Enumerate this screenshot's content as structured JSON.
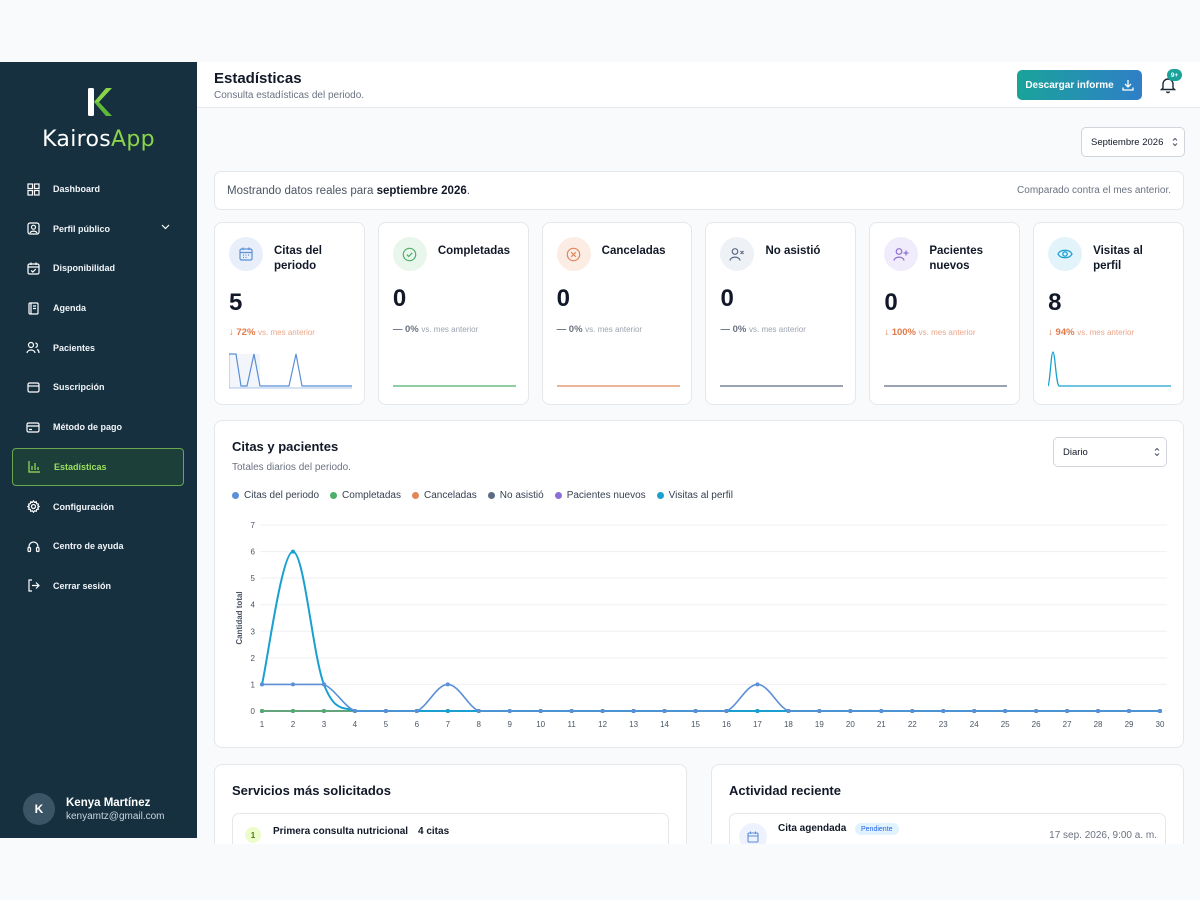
{
  "app": {
    "name_part1": "Kairos",
    "name_part2": "App"
  },
  "sidebar": {
    "items": [
      {
        "label": "Dashboard",
        "icon": "dashboard-icon"
      },
      {
        "label": "Perfil público",
        "icon": "profile-icon"
      },
      {
        "label": "Disponibilidad",
        "icon": "calendar-check-icon"
      },
      {
        "label": "Agenda",
        "icon": "agenda-icon"
      },
      {
        "label": "Pacientes",
        "icon": "users-icon"
      },
      {
        "label": "Suscripción",
        "icon": "subscription-icon"
      },
      {
        "label": "Método de pago",
        "icon": "credit-card-icon"
      },
      {
        "label": "Estadísticas",
        "icon": "bar-chart-icon",
        "active": true
      },
      {
        "label": "Configuración",
        "icon": "gear-icon"
      },
      {
        "label": "Centro de ayuda",
        "icon": "headset-icon"
      },
      {
        "label": "Cerrar sesión",
        "icon": "logout-icon"
      }
    ],
    "user": {
      "initial": "K",
      "name": "Kenya Martínez",
      "email": "kenyamtz@gmail.com"
    }
  },
  "header": {
    "title": "Estadísticas",
    "subtitle": "Consulta estadísticas del periodo.",
    "download_label": "Descargar informe",
    "notification_badge": "9+"
  },
  "filters": {
    "month": "Septiembre 2026",
    "period": "Diario"
  },
  "info_bar": {
    "prefix": "Mostrando datos reales para ",
    "month": "septiembre 2026",
    "suffix": ".",
    "comparison": "Comparado contra el mes anterior."
  },
  "colors": {
    "citas": "#5b8fd6",
    "completadas": "#4caf6a",
    "canceladas": "#e0865a",
    "no_asistio": "#5a6b85",
    "pacientes_nuevos": "#8b6fd6",
    "visitas": "#1aa0d0"
  },
  "stat_cards": [
    {
      "label": "Citas del periodo",
      "value": "5",
      "delta": "↓ 72%",
      "vs": "vs. mes anterior",
      "trend": "down",
      "icon": "calendar-icon"
    },
    {
      "label": "Completadas",
      "value": "0",
      "delta": "— 0%",
      "vs": "vs. mes anterior",
      "trend": "flat",
      "icon": "check-circle-icon"
    },
    {
      "label": "Canceladas",
      "value": "0",
      "delta": "— 0%",
      "vs": "vs. mes anterior",
      "trend": "flat",
      "icon": "x-circle-icon"
    },
    {
      "label": "No asistió",
      "value": "0",
      "delta": "— 0%",
      "vs": "vs. mes anterior",
      "trend": "flat",
      "icon": "user-x-icon"
    },
    {
      "label": "Pacientes nuevos",
      "value": "0",
      "delta": "↓ 100%",
      "vs": "vs. mes anterior",
      "trend": "down",
      "icon": "user-plus-icon"
    },
    {
      "label": "Visitas al perfil",
      "value": "8",
      "delta": "↓ 94%",
      "vs": "vs. mes anterior",
      "trend": "down",
      "icon": "eye-icon"
    }
  ],
  "chart_section": {
    "title": "Citas y pacientes",
    "subtitle": "Totales diarios del periodo."
  },
  "chart_data": {
    "type": "line",
    "ylabel": "Cantidad total",
    "ylim": [
      0,
      7
    ],
    "yticks": [
      0,
      1,
      2,
      3,
      4,
      5,
      6,
      7
    ],
    "x": [
      1,
      2,
      3,
      4,
      5,
      6,
      7,
      8,
      9,
      10,
      11,
      12,
      13,
      14,
      15,
      16,
      17,
      18,
      19,
      20,
      21,
      22,
      23,
      24,
      25,
      26,
      27,
      28,
      29,
      30
    ],
    "legend_position": "top-left",
    "grid": true,
    "series": [
      {
        "name": "Citas del periodo",
        "key": "citas",
        "values": [
          1,
          1,
          1,
          0,
          0,
          0,
          1,
          0,
          0,
          0,
          0,
          0,
          0,
          0,
          0,
          0,
          1,
          0,
          0,
          0,
          0,
          0,
          0,
          0,
          0,
          0,
          0,
          0,
          0,
          0
        ]
      },
      {
        "name": "Completadas",
        "key": "completadas",
        "values": [
          0,
          0,
          0,
          0,
          0,
          0,
          0,
          0,
          0,
          0,
          0,
          0,
          0,
          0,
          0,
          0,
          0,
          0,
          0,
          0,
          0,
          0,
          0,
          0,
          0,
          0,
          0,
          0,
          0,
          0
        ]
      },
      {
        "name": "Canceladas",
        "key": "canceladas",
        "values": [
          0,
          0,
          0,
          0,
          0,
          0,
          0,
          0,
          0,
          0,
          0,
          0,
          0,
          0,
          0,
          0,
          0,
          0,
          0,
          0,
          0,
          0,
          0,
          0,
          0,
          0,
          0,
          0,
          0,
          0
        ]
      },
      {
        "name": "No asistió",
        "key": "no_asistio",
        "values": [
          0,
          0,
          0,
          0,
          0,
          0,
          0,
          0,
          0,
          0,
          0,
          0,
          0,
          0,
          0,
          0,
          0,
          0,
          0,
          0,
          0,
          0,
          0,
          0,
          0,
          0,
          0,
          0,
          0,
          0
        ]
      },
      {
        "name": "Pacientes nuevos",
        "key": "pacientes_nuevos",
        "values": [
          0,
          0,
          0,
          0,
          0,
          0,
          0,
          0,
          0,
          0,
          0,
          0,
          0,
          0,
          0,
          0,
          0,
          0,
          0,
          0,
          0,
          0,
          0,
          0,
          0,
          0,
          0,
          0,
          0,
          0
        ]
      },
      {
        "name": "Visitas al perfil",
        "key": "visitas",
        "values": [
          1,
          6,
          1,
          0,
          0,
          0,
          0,
          0,
          0,
          0,
          0,
          0,
          0,
          0,
          0,
          0,
          0,
          0,
          0,
          0,
          0,
          0,
          0,
          0,
          0,
          0,
          0,
          0,
          0,
          0
        ]
      }
    ]
  },
  "services": {
    "title": "Servicios más solicitados",
    "items": [
      {
        "rank": "1",
        "name": "Primera consulta nutricional",
        "count": "4 citas"
      }
    ]
  },
  "activity": {
    "title": "Actividad reciente",
    "items": [
      {
        "title": "Cita agendada",
        "status": "Pendiente",
        "time": "17 sep. 2026, 9:00 a. m."
      }
    ]
  }
}
